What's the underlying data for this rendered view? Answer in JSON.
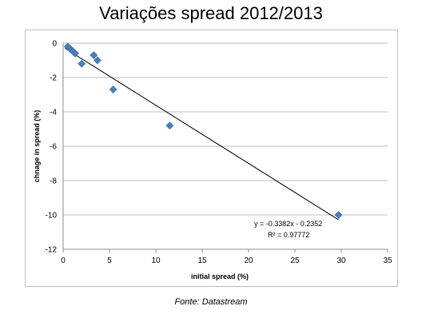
{
  "page": {
    "title": "Variações spread 2012/2013",
    "caption": "Fonte: Datastream"
  },
  "chart_data": {
    "type": "scatter",
    "title": "Variações spread 2012/2013",
    "xlabel": "initial spread (%)",
    "ylabel": "chnage in spread (%)",
    "xlim": [
      0,
      35
    ],
    "ylim": [
      -12,
      0
    ],
    "xticks": [
      "0",
      "5",
      "10",
      "15",
      "20",
      "25",
      "30",
      "35"
    ],
    "yticks": [
      "0",
      "-2",
      "-4",
      "-6",
      "-8",
      "-10",
      "-12"
    ],
    "grid": "horizontal",
    "marker_color": "#4a7ebb",
    "line_color": "#000000",
    "points": [
      {
        "x": 0.5,
        "y": -0.2
      },
      {
        "x": 0.7,
        "y": -0.3
      },
      {
        "x": 0.9,
        "y": -0.4
      },
      {
        "x": 1.1,
        "y": -0.5
      },
      {
        "x": 1.3,
        "y": -0.6
      },
      {
        "x": 2.0,
        "y": -1.2
      },
      {
        "x": 3.3,
        "y": -0.7
      },
      {
        "x": 3.7,
        "y": -1.0
      },
      {
        "x": 5.4,
        "y": -2.7
      },
      {
        "x": 11.5,
        "y": -4.8
      },
      {
        "x": 29.7,
        "y": -10.0
      }
    ],
    "trendline": {
      "slope": -0.3382,
      "intercept": -0.2352,
      "equation": "y = -0.3382x - 0.2352",
      "r2": "R² = 0.97772"
    }
  }
}
